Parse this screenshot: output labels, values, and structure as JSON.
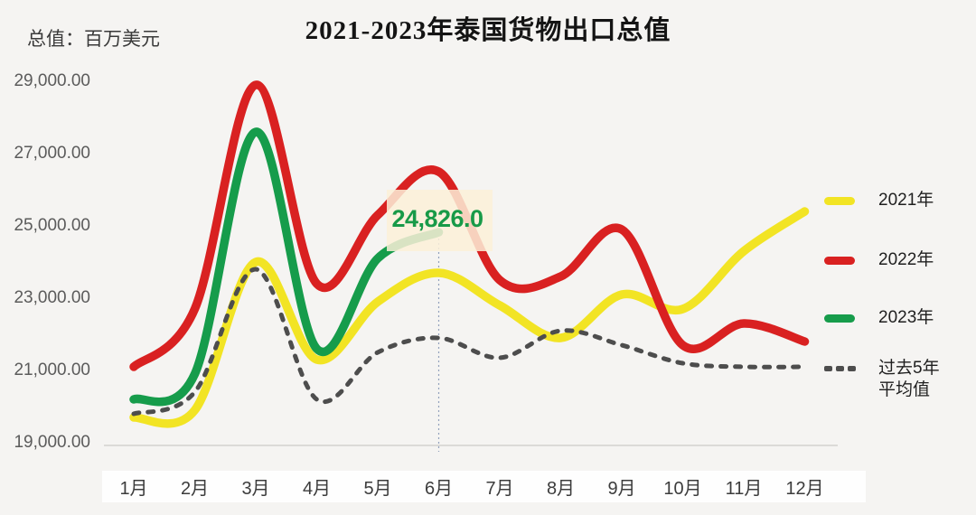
{
  "page": {
    "title": "2021-2023年泰国货物出口总值",
    "unit_label": "总值：百万美元"
  },
  "chart_data": {
    "type": "line",
    "title": "2021-2023年泰国货物出口总值",
    "unit": "百万美元",
    "categories": [
      "1月",
      "2月",
      "3月",
      "4月",
      "5月",
      "6月",
      "7月",
      "8月",
      "9月",
      "10月",
      "11月",
      "12月"
    ],
    "y_ticks": [
      "29,000.00",
      "27,000.00",
      "25,000.00",
      "23,000.00",
      "21,000.00",
      "19,000.00"
    ],
    "ylim": [
      19000,
      29500
    ],
    "grid": false,
    "legend_position": "right",
    "series": [
      {
        "name": "2021年",
        "color": "#F2E424",
        "style": "solid",
        "values": [
          19700,
          19900,
          24000,
          21300,
          22900,
          23700,
          22800,
          21900,
          23100,
          22700,
          24300,
          25400
        ]
      },
      {
        "name": "2022年",
        "color": "#D92121",
        "style": "solid",
        "values": [
          21100,
          22700,
          28900,
          23400,
          25300,
          26500,
          23500,
          23600,
          24900,
          21700,
          22300,
          21800
        ]
      },
      {
        "name": "2023年",
        "color": "#169C4B",
        "style": "solid",
        "values": [
          20200,
          20900,
          27600,
          21600,
          24100,
          24826
        ]
      },
      {
        "name": "过去5年平均值",
        "legend_lines": [
          "过去5年",
          "平均值"
        ],
        "color": "#4D4D4D",
        "style": "dashed",
        "values": [
          19800,
          20400,
          23800,
          20200,
          21500,
          21900,
          21350,
          22100,
          21700,
          21200,
          21100,
          21100
        ]
      }
    ],
    "annotation": {
      "series": "2023年",
      "month": "6月",
      "value": 24826,
      "text": "24,826.0"
    }
  },
  "colors": {
    "background": "#f5f4f2",
    "axis_line": "#dbdad7",
    "reference_line": "#93a1bd",
    "annotation_text": "#189a48",
    "annotation_box": "#fbf0d8",
    "tick_text": "#5b5b5b"
  }
}
